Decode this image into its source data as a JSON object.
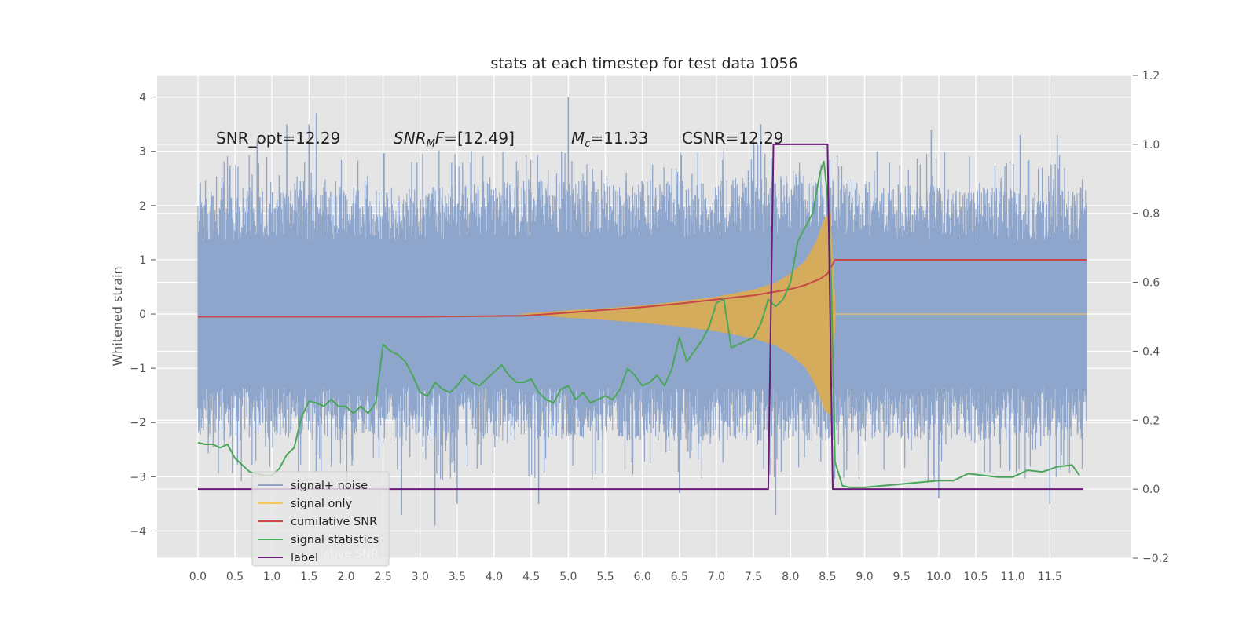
{
  "chart_data": {
    "type": "line",
    "title": "stats at each timestep for test data 1056",
    "ylabel": "Whitened strain",
    "xlabel": "",
    "xlim": [
      -0.55,
      12.6
    ],
    "ylim": [
      -4.5,
      4.4
    ],
    "y2lim": [
      -0.2,
      1.2
    ],
    "x_ticks": [
      0.0,
      0.5,
      1.0,
      1.5,
      2.0,
      2.5,
      3.0,
      3.5,
      4.0,
      4.5,
      5.0,
      5.5,
      6.0,
      6.5,
      7.0,
      7.5,
      8.0,
      8.5,
      9.0,
      9.5,
      10.0,
      10.5,
      11.0,
      11.5
    ],
    "x_tick_labels": [
      "0.0",
      "0.5",
      "1.0",
      "1.5",
      "2.0",
      "2.5",
      "3.0",
      "3.5",
      "4.0",
      "4.5",
      "5.0",
      "5.5",
      "6.0",
      "6.5",
      "7.0",
      "7.5",
      "8.0",
      "8.5",
      "9.0",
      "9.5",
      "10.0",
      "10.5",
      "11.0",
      "11.5"
    ],
    "y_ticks": [
      4,
      3,
      2,
      1,
      0,
      -1,
      -2,
      -3,
      -4
    ],
    "y_tick_labels": [
      "4",
      "3",
      "2",
      "1",
      "0",
      "−1",
      "−2",
      "−3",
      "−4"
    ],
    "y2_ticks": [
      1.2,
      1.0,
      0.8,
      0.6,
      0.4,
      0.2,
      0.0,
      -0.2
    ],
    "y2_tick_labels": [
      "1.2",
      "1.0",
      "0.8",
      "0.6",
      "0.4",
      "0.2",
      "0.0",
      "−0.2"
    ],
    "grid": true,
    "legend_position": "lower-left",
    "annotations": [
      {
        "id": "snr-opt",
        "text": "SNR_opt=12.29",
        "italic_prefix": "",
        "sub": "",
        "suffix": ""
      },
      {
        "id": "snr-mf",
        "text": "",
        "italic_prefix": "SNR",
        "sub": "M",
        "suffix": "F",
        "rest": "=[12.49]"
      },
      {
        "id": "mc",
        "text": "",
        "italic_prefix": "M",
        "sub": "c",
        "suffix": "",
        "rest": "=11.33"
      },
      {
        "id": "csnr",
        "text": "CSNR=12.29",
        "italic_prefix": "",
        "sub": "",
        "suffix": ""
      }
    ],
    "legend": [
      {
        "label": "signal+ noise",
        "color": "#8fa6cc"
      },
      {
        "label": "signal only",
        "color": "#f2c75c"
      },
      {
        "label": "cumilative SNR",
        "color": "#c84848"
      },
      {
        "label": "signal statistics",
        "color": "#4aa65a"
      },
      {
        "label": "label",
        "color": "#6a1b7a"
      }
    ],
    "legend_ghost_text": "lative SNR",
    "series": [
      {
        "name": "signal+ noise",
        "axis": "left",
        "color": "#8fa6cc",
        "envelope_x": [
          0.0,
          1.0,
          2.0,
          3.0,
          4.0,
          5.0,
          6.0,
          7.0,
          8.0,
          9.0,
          10.0,
          11.0,
          12.0
        ],
        "envelope_upper": [
          1.8,
          1.8,
          1.8,
          1.8,
          1.9,
          1.9,
          1.9,
          1.9,
          2.0,
          1.9,
          1.8,
          1.8,
          1.8
        ],
        "envelope_lower": [
          -1.8,
          -1.8,
          -1.8,
          -1.8,
          -1.8,
          -1.8,
          -1.8,
          -1.8,
          -1.8,
          -1.8,
          -1.8,
          -1.8,
          -1.8
        ],
        "peaks_high": [
          3.7,
          3.5,
          4.0,
          3.5,
          3.4,
          3.3,
          3.2,
          3.5,
          3.3,
          3.2
        ],
        "peaks_high_x": [
          1.6,
          1.2,
          5.0,
          7.6,
          9.9,
          11.6,
          7.5,
          1.5,
          11.1,
          0.8
        ],
        "peaks_low": [
          -3.7,
          -3.9,
          -3.5,
          -3.5,
          -3.7,
          -3.5,
          -3.4,
          -3.3
        ],
        "peaks_low_x": [
          2.75,
          3.2,
          4.6,
          3.5,
          7.8,
          11.5,
          10.0,
          6.5
        ]
      },
      {
        "name": "signal only",
        "axis": "left",
        "color": "#f2c75c",
        "envelope_x": [
          4.3,
          5.0,
          5.5,
          6.0,
          6.5,
          7.0,
          7.5,
          7.8,
          8.0,
          8.2,
          8.35,
          8.45,
          8.55,
          8.6,
          12.0
        ],
        "envelope_amp": [
          0.0,
          0.07,
          0.11,
          0.16,
          0.23,
          0.32,
          0.45,
          0.58,
          0.75,
          0.98,
          1.35,
          1.75,
          1.9,
          0.0,
          0.0
        ]
      },
      {
        "name": "cumilative SNR",
        "axis": "right",
        "color": "#c84848",
        "x": [
          0.0,
          1.0,
          2.0,
          3.0,
          4.0,
          4.4,
          5.0,
          5.5,
          6.0,
          6.5,
          7.0,
          7.5,
          8.0,
          8.2,
          8.4,
          8.5,
          8.6,
          9.0,
          10.0,
          11.0,
          12.0
        ],
        "y": [
          0.5,
          0.5,
          0.5,
          0.5,
          0.502,
          0.503,
          0.512,
          0.52,
          0.528,
          0.538,
          0.55,
          0.562,
          0.58,
          0.592,
          0.61,
          0.625,
          0.665,
          0.665,
          0.665,
          0.665,
          0.665
        ]
      },
      {
        "name": "signal statistics",
        "axis": "right",
        "color": "#4aa65a",
        "x": [
          0.0,
          0.1,
          0.2,
          0.3,
          0.4,
          0.5,
          0.6,
          0.7,
          0.8,
          0.9,
          1.0,
          1.1,
          1.2,
          1.3,
          1.4,
          1.5,
          1.6,
          1.7,
          1.8,
          1.9,
          2.0,
          2.1,
          2.2,
          2.3,
          2.4,
          2.5,
          2.6,
          2.7,
          2.8,
          2.9,
          3.0,
          3.1,
          3.2,
          3.3,
          3.4,
          3.5,
          3.6,
          3.7,
          3.8,
          3.9,
          4.0,
          4.1,
          4.2,
          4.3,
          4.4,
          4.5,
          4.6,
          4.7,
          4.8,
          4.9,
          5.0,
          5.1,
          5.2,
          5.3,
          5.4,
          5.5,
          5.6,
          5.7,
          5.8,
          5.9,
          6.0,
          6.1,
          6.2,
          6.3,
          6.4,
          6.5,
          6.6,
          6.7,
          6.8,
          6.9,
          7.0,
          7.1,
          7.2,
          7.3,
          7.4,
          7.5,
          7.6,
          7.7,
          7.8,
          7.9,
          8.0,
          8.1,
          8.2,
          8.3,
          8.4,
          8.45,
          8.5,
          8.55,
          8.6,
          8.7,
          8.8,
          9.0,
          9.5,
          10.0,
          10.2,
          10.4,
          10.6,
          10.8,
          11.0,
          11.2,
          11.4,
          11.6,
          11.8,
          11.9
        ],
        "y": [
          0.135,
          0.13,
          0.13,
          0.12,
          0.13,
          0.09,
          0.07,
          0.05,
          0.045,
          0.04,
          0.04,
          0.06,
          0.1,
          0.12,
          0.21,
          0.255,
          0.25,
          0.24,
          0.26,
          0.24,
          0.24,
          0.22,
          0.24,
          0.22,
          0.25,
          0.42,
          0.4,
          0.39,
          0.37,
          0.33,
          0.28,
          0.27,
          0.31,
          0.29,
          0.28,
          0.3,
          0.33,
          0.31,
          0.3,
          0.32,
          0.34,
          0.36,
          0.33,
          0.31,
          0.31,
          0.32,
          0.28,
          0.26,
          0.25,
          0.29,
          0.3,
          0.26,
          0.28,
          0.25,
          0.26,
          0.27,
          0.26,
          0.29,
          0.35,
          0.33,
          0.3,
          0.31,
          0.33,
          0.3,
          0.35,
          0.44,
          0.37,
          0.4,
          0.43,
          0.47,
          0.54,
          0.55,
          0.41,
          0.42,
          0.43,
          0.44,
          0.48,
          0.55,
          0.53,
          0.55,
          0.6,
          0.72,
          0.76,
          0.8,
          0.92,
          0.95,
          0.85,
          0.6,
          0.08,
          0.01,
          0.005,
          0.005,
          0.015,
          0.025,
          0.025,
          0.045,
          0.04,
          0.035,
          0.035,
          0.055,
          0.05,
          0.065,
          0.07,
          0.04
        ]
      },
      {
        "name": "label",
        "axis": "right",
        "color": "#6a1b7a",
        "x": [
          0.0,
          7.7,
          7.77,
          8.5,
          8.57,
          11.95
        ],
        "y": [
          0.0,
          0.0,
          1.0,
          1.0,
          0.0,
          0.0
        ]
      }
    ]
  }
}
